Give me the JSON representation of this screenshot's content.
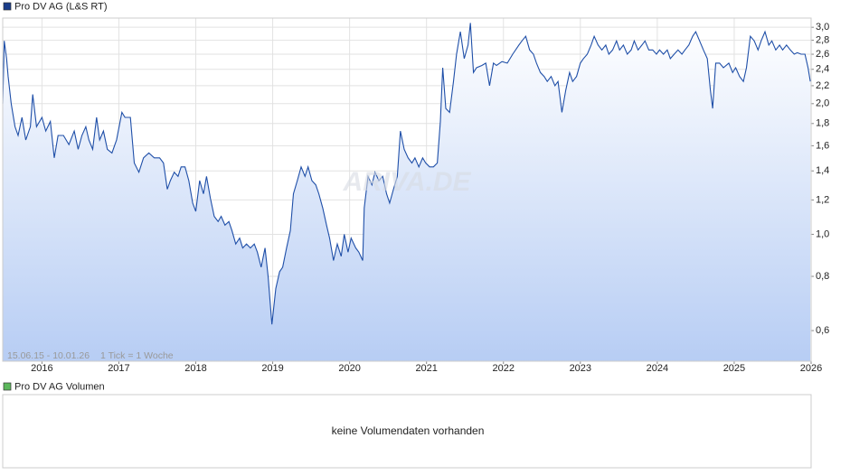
{
  "chart_data": {
    "type": "line",
    "log_scale": true,
    "grid": true,
    "date_range": "15.06.15 - 10.01.26",
    "tick_note": "1 Tick = 1 Woche",
    "watermark": "ARIVA.DE",
    "xlim": [
      2015.49,
      2026.0
    ],
    "xticks": [
      2016,
      2017,
      2018,
      2019,
      2020,
      2021,
      2022,
      2023,
      2024,
      2025,
      2026
    ],
    "ylim": [
      0.51,
      3.15
    ],
    "yticks": [
      {
        "value": 3.0,
        "label": "3,0"
      },
      {
        "value": 2.8,
        "label": "2,8"
      },
      {
        "value": 2.6,
        "label": "2,6"
      },
      {
        "value": 2.4,
        "label": "2,4"
      },
      {
        "value": 2.2,
        "label": "2,2"
      },
      {
        "value": 2.0,
        "label": "2,0"
      },
      {
        "value": 1.8,
        "label": "1,8"
      },
      {
        "value": 1.6,
        "label": "1,6"
      },
      {
        "value": 1.4,
        "label": "1,4"
      },
      {
        "value": 1.2,
        "label": "1,2"
      },
      {
        "value": 1.0,
        "label": "1,0"
      },
      {
        "value": 0.8,
        "label": "0,8"
      },
      {
        "value": 0.6,
        "label": "0,6"
      }
    ],
    "x": [
      2015.49,
      2015.51,
      2015.54,
      2015.56,
      2015.6,
      2015.65,
      2015.69,
      2015.74,
      2015.79,
      2015.85,
      2015.88,
      2015.93,
      2016.0,
      2016.05,
      2016.11,
      2016.16,
      2016.21,
      2016.28,
      2016.35,
      2016.42,
      2016.47,
      2016.52,
      2016.57,
      2016.61,
      2016.66,
      2016.71,
      2016.75,
      2016.8,
      2016.85,
      2016.91,
      2016.97,
      2017.04,
      2017.08,
      2017.15,
      2017.2,
      2017.26,
      2017.32,
      2017.39,
      2017.46,
      2017.53,
      2017.58,
      2017.63,
      2017.67,
      2017.72,
      2017.77,
      2017.81,
      2017.86,
      2017.91,
      2017.96,
      2018.0,
      2018.05,
      2018.1,
      2018.14,
      2018.19,
      2018.24,
      2018.29,
      2018.33,
      2018.38,
      2018.43,
      2018.47,
      2018.52,
      2018.57,
      2018.61,
      2018.66,
      2018.71,
      2018.76,
      2018.8,
      2018.85,
      2018.9,
      2018.94,
      2018.99,
      2019.04,
      2019.09,
      2019.13,
      2019.18,
      2019.23,
      2019.27,
      2019.32,
      2019.37,
      2019.42,
      2019.46,
      2019.51,
      2019.56,
      2019.6,
      2019.65,
      2019.7,
      2019.74,
      2019.79,
      2019.84,
      2019.89,
      2019.93,
      2019.98,
      2020.02,
      2020.08,
      2020.12,
      2020.17,
      2020.19,
      2020.24,
      2020.29,
      2020.33,
      2020.38,
      2020.43,
      2020.48,
      2020.52,
      2020.57,
      2020.62,
      2020.66,
      2020.71,
      2020.76,
      2020.81,
      2020.85,
      2020.9,
      2020.95,
      2020.99,
      2021.04,
      2021.09,
      2021.14,
      2021.18,
      2021.21,
      2021.25,
      2021.3,
      2021.35,
      2021.39,
      2021.44,
      2021.49,
      2021.54,
      2021.57,
      2021.61,
      2021.65,
      2021.72,
      2021.77,
      2021.82,
      2021.87,
      2021.91,
      2021.98,
      2022.05,
      2022.12,
      2022.2,
      2022.24,
      2022.29,
      2022.34,
      2022.39,
      2022.43,
      2022.48,
      2022.53,
      2022.57,
      2022.62,
      2022.67,
      2022.71,
      2022.76,
      2022.81,
      2022.86,
      2022.9,
      2022.95,
      2023.0,
      2023.04,
      2023.09,
      2023.14,
      2023.18,
      2023.23,
      2023.28,
      2023.33,
      2023.37,
      2023.42,
      2023.47,
      2023.51,
      2023.56,
      2023.61,
      2023.66,
      2023.7,
      2023.75,
      2023.8,
      2023.84,
      2023.89,
      2023.94,
      2023.99,
      2024.03,
      2024.08,
      2024.13,
      2024.17,
      2024.22,
      2024.27,
      2024.32,
      2024.36,
      2024.41,
      2024.46,
      2024.5,
      2024.55,
      2024.6,
      2024.65,
      2024.69,
      2024.72,
      2024.76,
      2024.81,
      2024.86,
      2024.93,
      2024.98,
      2025.02,
      2025.07,
      2025.12,
      2025.16,
      2025.21,
      2025.26,
      2025.31,
      2025.35,
      2025.4,
      2025.45,
      2025.49,
      2025.54,
      2025.59,
      2025.63,
      2025.68,
      2025.73,
      2025.78,
      2025.82,
      2025.87,
      2025.92,
      2025.96,
      2025.99
    ],
    "series": [
      {
        "name": "Pro DV AG (L&S RT)",
        "color": "#1f4fa8",
        "legend_color": "#1a3d8a",
        "values": [
          2.0,
          2.79,
          2.54,
          2.31,
          2.0,
          1.77,
          1.69,
          1.86,
          1.65,
          1.77,
          2.1,
          1.77,
          1.86,
          1.73,
          1.82,
          1.5,
          1.69,
          1.69,
          1.61,
          1.73,
          1.57,
          1.69,
          1.77,
          1.65,
          1.57,
          1.86,
          1.65,
          1.73,
          1.57,
          1.54,
          1.65,
          1.91,
          1.86,
          1.86,
          1.46,
          1.39,
          1.5,
          1.54,
          1.5,
          1.5,
          1.46,
          1.27,
          1.33,
          1.39,
          1.36,
          1.43,
          1.43,
          1.33,
          1.18,
          1.13,
          1.33,
          1.24,
          1.36,
          1.21,
          1.1,
          1.07,
          1.1,
          1.05,
          1.07,
          1.02,
          0.95,
          0.98,
          0.93,
          0.95,
          0.93,
          0.95,
          0.91,
          0.84,
          0.93,
          0.8,
          0.62,
          0.75,
          0.82,
          0.84,
          0.93,
          1.02,
          1.24,
          1.33,
          1.43,
          1.36,
          1.43,
          1.33,
          1.3,
          1.24,
          1.15,
          1.05,
          0.98,
          0.87,
          0.95,
          0.89,
          1.0,
          0.91,
          0.98,
          0.93,
          0.91,
          0.87,
          1.15,
          1.36,
          1.3,
          1.39,
          1.33,
          1.36,
          1.24,
          1.18,
          1.27,
          1.36,
          1.73,
          1.57,
          1.5,
          1.46,
          1.5,
          1.43,
          1.5,
          1.46,
          1.43,
          1.43,
          1.46,
          1.82,
          2.42,
          1.95,
          1.91,
          2.25,
          2.6,
          2.93,
          2.54,
          2.73,
          3.07,
          2.36,
          2.42,
          2.45,
          2.48,
          2.2,
          2.48,
          2.45,
          2.5,
          2.48,
          2.6,
          2.73,
          2.79,
          2.86,
          2.66,
          2.6,
          2.48,
          2.36,
          2.31,
          2.25,
          2.31,
          2.2,
          2.25,
          1.91,
          2.15,
          2.36,
          2.25,
          2.31,
          2.48,
          2.54,
          2.6,
          2.73,
          2.86,
          2.73,
          2.66,
          2.73,
          2.6,
          2.66,
          2.79,
          2.66,
          2.73,
          2.6,
          2.66,
          2.79,
          2.66,
          2.73,
          2.79,
          2.66,
          2.66,
          2.6,
          2.66,
          2.6,
          2.66,
          2.54,
          2.6,
          2.66,
          2.6,
          2.66,
          2.73,
          2.86,
          2.93,
          2.79,
          2.66,
          2.54,
          2.15,
          1.95,
          2.48,
          2.48,
          2.42,
          2.48,
          2.36,
          2.42,
          2.31,
          2.25,
          2.42,
          2.86,
          2.79,
          2.66,
          2.79,
          2.93,
          2.73,
          2.79,
          2.66,
          2.73,
          2.66,
          2.73,
          2.66,
          2.6,
          2.62,
          2.6,
          2.6,
          2.42,
          2.25
        ]
      }
    ]
  },
  "volume_panel": {
    "legend": "Pro DV AG Volumen",
    "color": "#5cb85c",
    "message": "keine Volumendaten vorhanden"
  }
}
